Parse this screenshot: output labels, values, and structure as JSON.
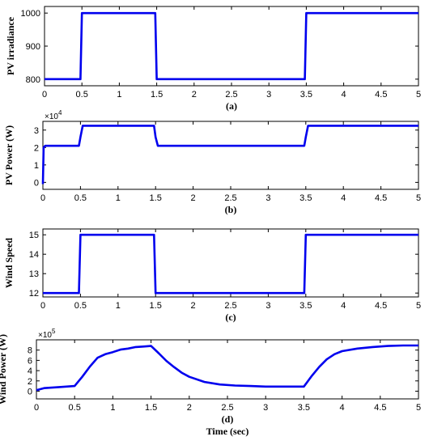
{
  "chart_data": [
    {
      "type": "line",
      "ylabel": "PV irradiance",
      "caption": "(a)",
      "xlim": [
        0,
        5
      ],
      "ylim": [
        780,
        1020
      ],
      "xticks": [
        0,
        0.5,
        1,
        1.5,
        2,
        2.5,
        3,
        3.5,
        4,
        4.5,
        5
      ],
      "yticks": [
        800,
        900,
        1000
      ],
      "ytick_labels": [
        "800",
        "900",
        "1000"
      ],
      "series": [
        {
          "color": "#0000ee",
          "x": [
            0,
            0.48,
            0.5,
            1.48,
            1.5,
            3.48,
            3.5,
            5
          ],
          "y": [
            800,
            800,
            1000,
            1000,
            800,
            800,
            1000,
            1000
          ]
        }
      ]
    },
    {
      "type": "line",
      "ylabel": "PV Power (W)",
      "caption": "(b)",
      "multiplier": "×10",
      "multiplier_exp": "4",
      "xlim": [
        0,
        5
      ],
      "ylim": [
        -0.4,
        3.5
      ],
      "xticks": [
        0,
        0.5,
        1,
        1.5,
        2,
        2.5,
        3,
        3.5,
        4,
        4.5,
        5
      ],
      "yticks": [
        0,
        1,
        2,
        3
      ],
      "ytick_labels": [
        "0",
        "1",
        "2",
        "3"
      ],
      "series": [
        {
          "color": "#0000ee",
          "x": [
            0,
            0.01,
            0.03,
            0.48,
            0.5,
            0.53,
            1.48,
            1.5,
            1.53,
            3.48,
            3.5,
            3.53,
            5
          ],
          "y": [
            -0.1,
            2.0,
            2.1,
            2.1,
            2.6,
            3.25,
            3.25,
            2.6,
            2.1,
            2.1,
            2.6,
            3.25,
            3.25
          ]
        }
      ]
    },
    {
      "type": "line",
      "ylabel": "Wind Speed",
      "caption": "(c)",
      "xlim": [
        0,
        5
      ],
      "ylim": [
        11.8,
        15.3
      ],
      "xticks": [
        0,
        0.5,
        1,
        1.5,
        2,
        2.5,
        3,
        3.5,
        4,
        4.5,
        5
      ],
      "yticks": [
        12,
        13,
        14,
        15
      ],
      "ytick_labels": [
        "12",
        "13",
        "14",
        "15"
      ],
      "series": [
        {
          "color": "#0000ee",
          "x": [
            0,
            0.48,
            0.5,
            1.48,
            1.5,
            3.48,
            3.5,
            5
          ],
          "y": [
            12,
            12,
            15,
            15,
            12,
            12,
            15,
            15
          ]
        }
      ]
    },
    {
      "type": "line",
      "ylabel": "Wind Power (W)",
      "caption": "(d)",
      "xlabel": "Time (sec)",
      "multiplier": "×10",
      "multiplier_exp": "5",
      "xlim": [
        0,
        5
      ],
      "ylim": [
        -1.5,
        10
      ],
      "xticks": [
        0,
        0.5,
        1,
        1.5,
        2,
        2.5,
        3,
        3.5,
        4,
        4.5,
        5
      ],
      "yticks": [
        0,
        2,
        4,
        6,
        8
      ],
      "ytick_labels": [
        "0",
        "2",
        "4",
        "6",
        "8"
      ],
      "series": [
        {
          "color": "#0000ee",
          "x": [
            0,
            0.1,
            0.3,
            0.5,
            0.6,
            0.7,
            0.8,
            0.9,
            1.0,
            1.1,
            1.2,
            1.3,
            1.4,
            1.5,
            1.6,
            1.7,
            1.8,
            1.9,
            2.0,
            2.2,
            2.4,
            2.6,
            2.8,
            3.0,
            3.2,
            3.5,
            3.6,
            3.7,
            3.8,
            3.9,
            4.0,
            4.2,
            4.4,
            4.6,
            4.8,
            5.0
          ],
          "y": [
            0.2,
            0.6,
            0.8,
            1.0,
            2.8,
            4.8,
            6.5,
            7.2,
            7.6,
            8.1,
            8.3,
            8.6,
            8.7,
            8.8,
            7.4,
            5.9,
            4.7,
            3.6,
            2.8,
            1.8,
            1.3,
            1.1,
            1.0,
            0.9,
            0.9,
            0.9,
            2.9,
            4.7,
            6.2,
            7.2,
            7.8,
            8.3,
            8.6,
            8.8,
            8.9,
            8.9
          ]
        }
      ]
    }
  ]
}
